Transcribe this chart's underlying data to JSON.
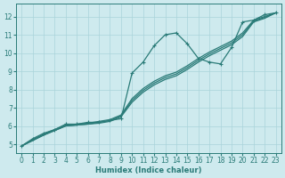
{
  "bg_color": "#ceeaee",
  "grid_color": "#aad4da",
  "line_color": "#2a7b78",
  "xlabel": "Humidex (Indice chaleur)",
  "xlim": [
    -0.5,
    23.5
  ],
  "ylim": [
    4.5,
    12.7
  ],
  "yticks": [
    5,
    6,
    7,
    8,
    9,
    10,
    11,
    12
  ],
  "xticks": [
    0,
    1,
    2,
    3,
    4,
    5,
    6,
    7,
    8,
    9,
    10,
    11,
    12,
    13,
    14,
    15,
    16,
    17,
    18,
    19,
    20,
    21,
    22,
    23
  ],
  "series": [
    {
      "has_markers": true,
      "x": [
        0,
        1,
        2,
        3,
        4,
        5,
        6,
        7,
        8,
        9,
        10,
        11,
        12,
        13,
        14,
        15,
        16,
        17,
        18,
        19,
        20,
        21,
        22,
        23
      ],
      "y": [
        4.9,
        5.3,
        5.6,
        5.8,
        6.1,
        6.1,
        6.2,
        6.2,
        6.3,
        6.4,
        8.9,
        9.5,
        10.4,
        11.0,
        11.1,
        10.5,
        9.7,
        9.5,
        9.4,
        10.3,
        11.7,
        11.8,
        12.1,
        12.2
      ]
    },
    {
      "has_markers": false,
      "x": [
        0,
        1,
        2,
        3,
        4,
        5,
        6,
        7,
        8,
        9,
        10,
        11,
        12,
        13,
        14,
        15,
        16,
        17,
        18,
        19,
        20,
        21,
        22,
        23
      ],
      "y": [
        4.9,
        5.2,
        5.5,
        5.75,
        6.0,
        6.05,
        6.1,
        6.15,
        6.25,
        6.5,
        7.3,
        7.85,
        8.25,
        8.55,
        8.75,
        9.1,
        9.5,
        9.85,
        10.15,
        10.45,
        10.9,
        11.7,
        11.9,
        12.2
      ]
    },
    {
      "has_markers": false,
      "x": [
        0,
        1,
        2,
        3,
        4,
        5,
        6,
        7,
        8,
        9,
        10,
        11,
        12,
        13,
        14,
        15,
        16,
        17,
        18,
        19,
        20,
        21,
        22,
        23
      ],
      "y": [
        4.9,
        5.2,
        5.5,
        5.75,
        6.0,
        6.05,
        6.1,
        6.2,
        6.3,
        6.55,
        7.4,
        7.95,
        8.35,
        8.65,
        8.85,
        9.2,
        9.6,
        9.95,
        10.25,
        10.55,
        11.0,
        11.75,
        11.95,
        12.2
      ]
    },
    {
      "has_markers": false,
      "x": [
        0,
        1,
        2,
        3,
        4,
        5,
        6,
        7,
        8,
        9,
        10,
        11,
        12,
        13,
        14,
        15,
        16,
        17,
        18,
        19,
        20,
        21,
        22,
        23
      ],
      "y": [
        4.9,
        5.25,
        5.55,
        5.8,
        6.05,
        6.1,
        6.15,
        6.25,
        6.35,
        6.6,
        7.5,
        8.05,
        8.45,
        8.75,
        8.95,
        9.3,
        9.7,
        10.05,
        10.35,
        10.65,
        11.1,
        11.8,
        12.0,
        12.2
      ]
    }
  ]
}
